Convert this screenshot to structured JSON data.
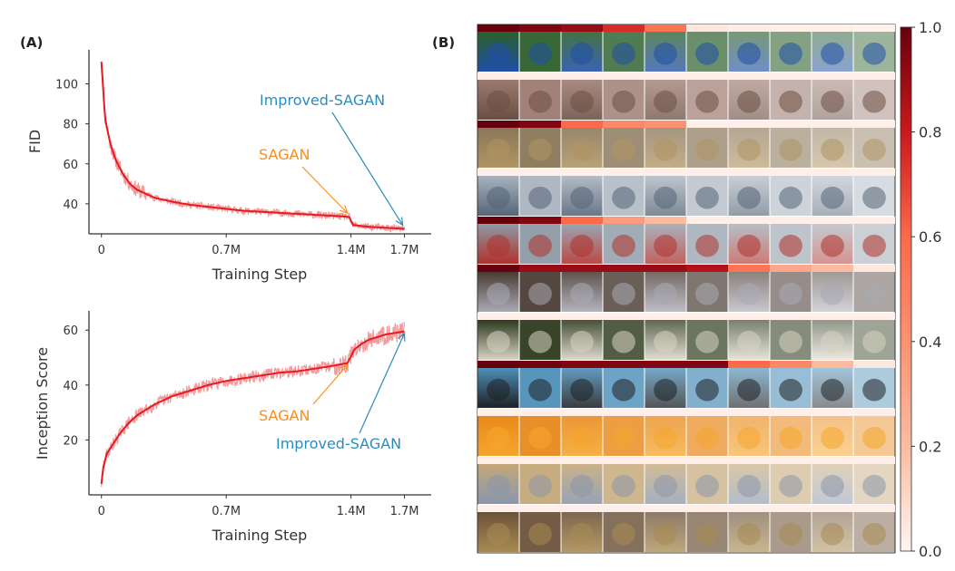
{
  "panel_labels": {
    "a": "(A)",
    "b": "(B)"
  },
  "colors": {
    "curve": "#e8191f",
    "curve_noise": "#f28f91",
    "sagan": "#ff8c1a",
    "improved": "#2b8cbe",
    "axis": "#333333"
  },
  "chart_data": [
    {
      "type": "line",
      "xlabel": "Training Step",
      "ylabel": "FID",
      "x_ticks": [
        {
          "value": 0,
          "label": "0"
        },
        {
          "value": 0.7,
          "label": "0.7M"
        },
        {
          "value": 1.4,
          "label": "1.4M"
        },
        {
          "value": 1.7,
          "label": "1.7M"
        }
      ],
      "y_ticks": [
        40,
        60,
        80,
        100
      ],
      "xlim": [
        -0.07,
        1.85
      ],
      "ylim": [
        25,
        117
      ],
      "series": [
        {
          "x": [
            0.0,
            0.02,
            0.05,
            0.08,
            0.12,
            0.16,
            0.2,
            0.25,
            0.3,
            0.4,
            0.5,
            0.6,
            0.7,
            0.8,
            0.9,
            1.0,
            1.1,
            1.2,
            1.3,
            1.39,
            1.41,
            1.45,
            1.5,
            1.6,
            1.7
          ],
          "y": [
            111,
            83,
            70,
            62,
            55,
            50,
            47,
            45,
            43,
            41,
            39.5,
            38.5,
            37.5,
            36.5,
            36,
            35.5,
            35,
            34.5,
            34,
            33.5,
            29.5,
            29,
            28.5,
            28,
            27.5
          ]
        }
      ],
      "annotations": [
        {
          "text": "SAGAN",
          "color": "sagan",
          "point": [
            1.39,
            34
          ]
        },
        {
          "text": "Improved-SAGAN",
          "color": "improved",
          "point": [
            1.7,
            28
          ]
        }
      ]
    },
    {
      "type": "line",
      "xlabel": "Training Step",
      "ylabel": "Inception Score",
      "x_ticks": [
        {
          "value": 0,
          "label": "0"
        },
        {
          "value": 0.7,
          "label": "0.7M"
        },
        {
          "value": 1.4,
          "label": "1.4M"
        },
        {
          "value": 1.7,
          "label": "1.7M"
        }
      ],
      "y_ticks": [
        20,
        40,
        60
      ],
      "xlim": [
        -0.07,
        1.85
      ],
      "ylim": [
        0,
        67
      ],
      "series": [
        {
          "x": [
            0.0,
            0.01,
            0.03,
            0.06,
            0.1,
            0.15,
            0.2,
            0.3,
            0.4,
            0.5,
            0.6,
            0.7,
            0.8,
            0.9,
            1.0,
            1.1,
            1.2,
            1.3,
            1.38,
            1.42,
            1.46,
            1.5,
            1.55,
            1.6,
            1.65,
            1.7
          ],
          "y": [
            4,
            10,
            15,
            18,
            22,
            26,
            29,
            33,
            36,
            38,
            40,
            41.5,
            42.5,
            43.5,
            44.5,
            45,
            46,
            47,
            48,
            53,
            55,
            56.5,
            57.5,
            58.5,
            59,
            59.5
          ]
        }
      ],
      "annotations": [
        {
          "text": "SAGAN",
          "color": "sagan",
          "point": [
            1.38,
            48
          ]
        },
        {
          "text": "Improved-SAGAN",
          "color": "improved",
          "point": [
            1.7,
            59.5
          ]
        }
      ]
    },
    {
      "type": "heatmap",
      "rows": 11,
      "columns": 10,
      "colorbar": {
        "ticks": [
          "0.0",
          "0.2",
          "0.4",
          "0.6",
          "0.8",
          "1.0"
        ],
        "range": [
          0,
          1
        ],
        "high_color": "#67000d",
        "low_color": "#fff5f0"
      },
      "row_scores": [
        [
          1.0,
          0.95,
          0.9,
          0.75,
          0.55,
          0.05,
          0.03,
          0.02,
          0.02,
          0.01
        ],
        [
          0.02,
          0.02,
          0.02,
          0.02,
          0.02,
          0.02,
          0.02,
          0.02,
          0.02,
          0.02
        ],
        [
          1.0,
          0.95,
          0.6,
          0.45,
          0.4,
          0.02,
          0.02,
          0.02,
          0.02,
          0.02
        ],
        [
          0.02,
          0.02,
          0.02,
          0.02,
          0.02,
          0.02,
          0.02,
          0.02,
          0.02,
          0.02
        ],
        [
          1.0,
          0.95,
          0.6,
          0.35,
          0.2,
          0.02,
          0.02,
          0.02,
          0.02,
          0.02
        ],
        [
          1.0,
          0.9,
          0.9,
          0.9,
          0.9,
          0.85,
          0.55,
          0.3,
          0.2,
          0.05
        ],
        [
          0.02,
          0.02,
          0.02,
          0.02,
          0.02,
          0.02,
          0.02,
          0.02,
          0.02,
          0.02
        ],
        [
          1.0,
          0.98,
          0.95,
          0.95,
          0.95,
          0.95,
          0.6,
          0.45,
          0.2,
          0.05
        ],
        [
          0.02,
          0.02,
          0.02,
          0.02,
          0.02,
          0.02,
          0.02,
          0.02,
          0.02,
          0.02
        ],
        [
          0.02,
          0.02,
          0.02,
          0.02,
          0.02,
          0.02,
          0.02,
          0.02,
          0.02,
          0.02
        ],
        [
          0.02,
          0.02,
          0.02,
          0.02,
          0.02,
          0.02,
          0.02,
          0.02,
          0.02,
          0.02
        ]
      ],
      "row_palettes": [
        [
          "#2b5f2a",
          "#1f4fa8"
        ],
        [
          "#9c7a70",
          "#6b4f44"
        ],
        [
          "#8a7658",
          "#b09463"
        ],
        [
          "#a9b3bf",
          "#556577"
        ],
        [
          "#8d9aa6",
          "#b0312c"
        ],
        [
          "#4a3c33",
          "#a9a9b5"
        ],
        [
          "#2d3a1c",
          "#d9d3c4"
        ],
        [
          "#4d8fb8",
          "#1e2124"
        ],
        [
          "#e8891c",
          "#f5a52b"
        ],
        [
          "#c4a777",
          "#8a97ac"
        ],
        [
          "#6b5238",
          "#a88b52"
        ]
      ]
    }
  ]
}
